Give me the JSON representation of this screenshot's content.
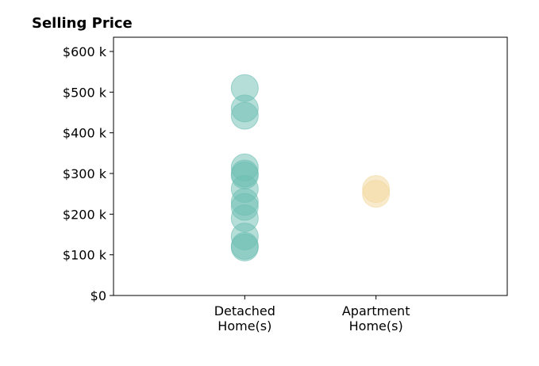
{
  "chart_data": {
    "type": "scatter",
    "title": "Selling Price",
    "xlabel": "",
    "ylabel": "",
    "categories": [
      [
        "Detached",
        "Home(s)"
      ],
      [
        "Apartment",
        "Home(s)"
      ]
    ],
    "xlim": [
      -1,
      2
    ],
    "ylim": [
      0,
      635000
    ],
    "yticks": [
      0,
      100000,
      200000,
      300000,
      400000,
      500000,
      600000
    ],
    "ytick_labels": [
      "$0",
      "$100 k",
      "$200 k",
      "$300 k",
      "$400 k",
      "$500 k",
      "$600 k"
    ],
    "grid": false,
    "series": [
      {
        "category_index": 0,
        "color": "#6bbdb2",
        "values": [
          510000,
          460000,
          442000,
          315000,
          300000,
          295000,
          262000,
          230000,
          218000,
          190000,
          145000,
          122000,
          118000
        ]
      },
      {
        "category_index": 1,
        "color": "#f2d79c",
        "values": [
          262000,
          250000
        ]
      }
    ]
  }
}
